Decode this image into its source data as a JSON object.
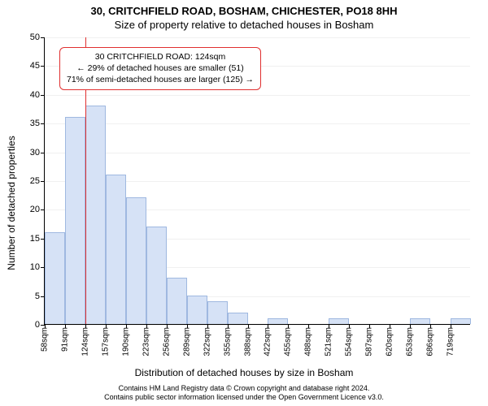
{
  "title_main": "30, CRITCHFIELD ROAD, BOSHAM, CHICHESTER, PO18 8HH",
  "title_sub": "Size of property relative to detached houses in Bosham",
  "ylabel": "Number of detached properties",
  "xlabel": "Distribution of detached houses by size in Bosham",
  "footer_line1": "Contains HM Land Registry data © Crown copyright and database right 2024.",
  "footer_line2": "Contains public sector information licensed under the Open Government Licence v3.0.",
  "chart": {
    "type": "histogram",
    "background_color": "#ffffff",
    "grid_color": "#f0f0f0",
    "axis_color": "#000000",
    "bar_fill": "#d6e2f6",
    "bar_stroke": "#9fb8e0",
    "marker_color": "#e03030",
    "callout_border": "#e03030",
    "callout_bg": "#ffffff",
    "ylim": [
      0,
      50
    ],
    "yticks": [
      0,
      5,
      10,
      15,
      20,
      25,
      30,
      35,
      40,
      45,
      50
    ],
    "x_bin_start": 58,
    "x_bin_width": 33,
    "x_bin_count": 21,
    "x_unit": "sqm",
    "xtick_labels": [
      "58sqm",
      "91sqm",
      "124sqm",
      "157sqm",
      "190sqm",
      "223sqm",
      "256sqm",
      "289sqm",
      "322sqm",
      "355sqm",
      "388sqm",
      "422sqm",
      "455sqm",
      "488sqm",
      "521sqm",
      "554sqm",
      "587sqm",
      "620sqm",
      "653sqm",
      "686sqm",
      "719sqm"
    ],
    "values": [
      16,
      36,
      38,
      26,
      22,
      17,
      8,
      5,
      4,
      2,
      0,
      1,
      0,
      0,
      1,
      0,
      0,
      0,
      1,
      0,
      1
    ],
    "marker_value": 124,
    "callout": {
      "line1": "30 CRITCHFIELD ROAD: 124sqm",
      "line2": "← 29% of detached houses are smaller (51)",
      "line3": "71% of semi-detached houses are larger (125) →"
    }
  },
  "style": {
    "title_fontsize": 13,
    "subtitle_fontsize": 13,
    "axis_label_fontsize": 12,
    "tick_fontsize": 11,
    "xtick_fontsize": 10,
    "callout_fontsize": 10.5,
    "footer_fontsize": 9
  }
}
